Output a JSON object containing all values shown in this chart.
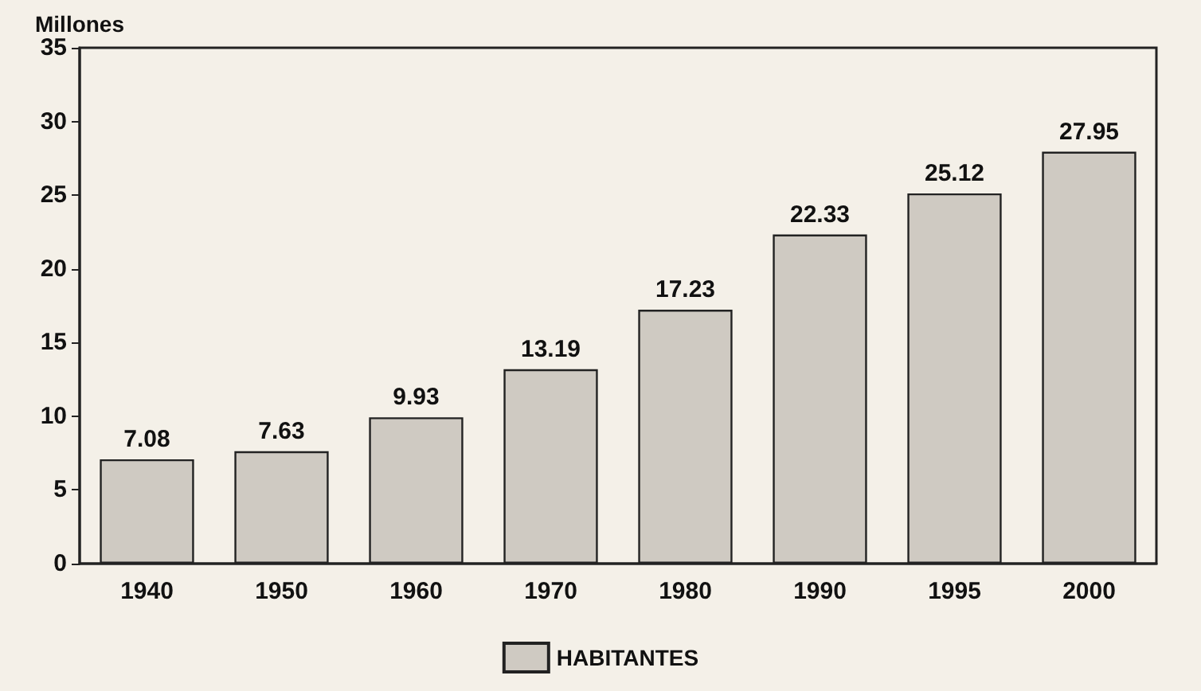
{
  "chart_data": {
    "type": "bar",
    "ylabel": "Millones",
    "categories": [
      "1940",
      "1950",
      "1960",
      "1970",
      "1980",
      "1990",
      "1995",
      "2000"
    ],
    "series": [
      {
        "name": "HABITANTES",
        "color": "#cfcac2",
        "values": [
          7.08,
          7.63,
          9.93,
          13.19,
          17.23,
          22.33,
          25.12,
          27.95
        ]
      }
    ],
    "ylim": [
      0,
      35
    ],
    "yticks": [
      0,
      5,
      10,
      15,
      20,
      25,
      30,
      35
    ],
    "data_labels": true,
    "grid": false,
    "legend": "bottom"
  }
}
